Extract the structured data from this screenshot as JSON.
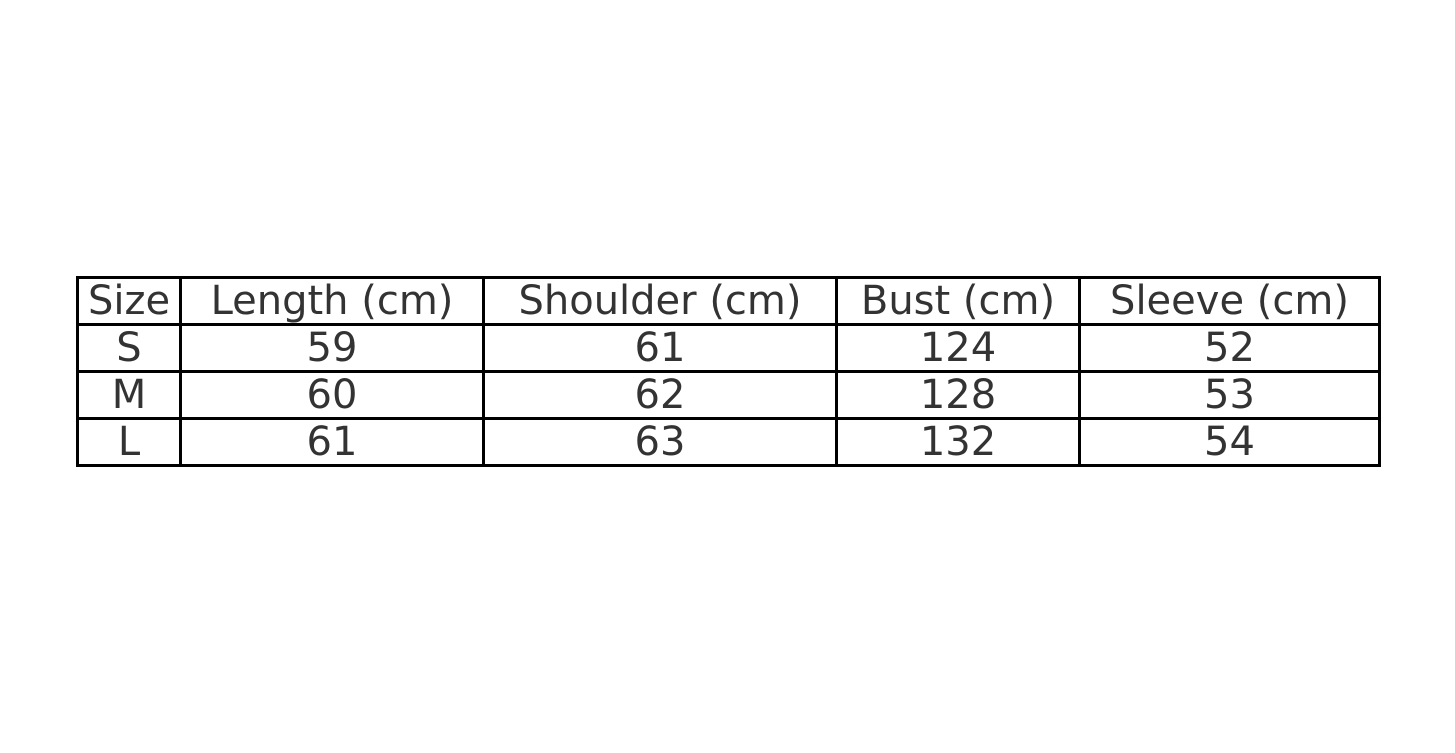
{
  "chart_data": {
    "type": "table",
    "columns": [
      "Size",
      "Length (cm)",
      "Shoulder (cm)",
      "Bust (cm)",
      "Sleeve (cm)"
    ],
    "rows": [
      [
        "S",
        "59",
        "61",
        "124",
        "52"
      ],
      [
        "M",
        "60",
        "62",
        "128",
        "53"
      ],
      [
        "L",
        "61",
        "63",
        "132",
        "54"
      ]
    ]
  }
}
